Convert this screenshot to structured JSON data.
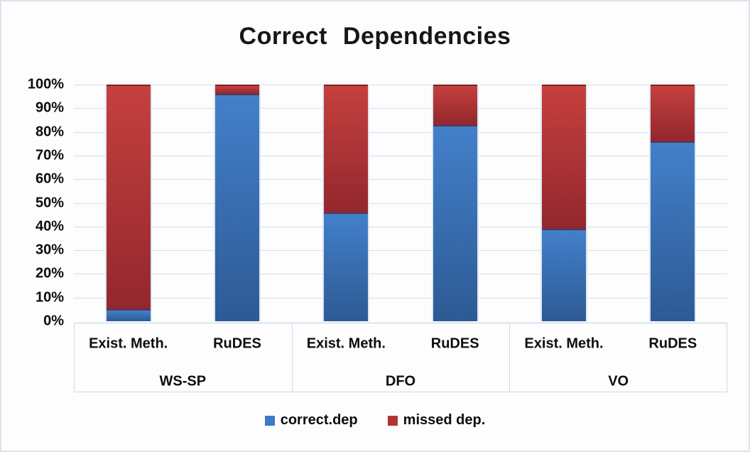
{
  "chart_data": {
    "type": "bar",
    "stacked": true,
    "title": "Correct Dependencies",
    "unit": "%",
    "ylim": [
      0,
      100
    ],
    "ytick_step": 10,
    "y_ticks": [
      "100%",
      "90%",
      "80%",
      "70%",
      "60%",
      "50%",
      "40%",
      "30%",
      "20%",
      "10%",
      "0%"
    ],
    "grid": true,
    "legend_position": "bottom",
    "groups": [
      {
        "label": "WS-SP",
        "bars": [
          {
            "label": "Exist. Meth.",
            "correct_dep": 5,
            "missed_dep": 95
          },
          {
            "label": "RuDES",
            "correct_dep": 96,
            "missed_dep": 4
          }
        ]
      },
      {
        "label": "DFO",
        "bars": [
          {
            "label": "Exist. Meth.",
            "correct_dep": 46,
            "missed_dep": 54
          },
          {
            "label": "RuDES",
            "correct_dep": 83,
            "missed_dep": 17
          }
        ]
      },
      {
        "label": "VO",
        "bars": [
          {
            "label": "Exist. Meth.",
            "correct_dep": 39,
            "missed_dep": 61
          },
          {
            "label": "RuDES",
            "correct_dep": 76,
            "missed_dep": 24
          }
        ]
      }
    ],
    "series": [
      {
        "name": "correct.dep",
        "color": "#3D79C4",
        "values": [
          5,
          96,
          46,
          83,
          39,
          76
        ]
      },
      {
        "name": "missed dep.",
        "color": "#B23433",
        "values": [
          95,
          4,
          54,
          17,
          61,
          24
        ]
      }
    ]
  }
}
